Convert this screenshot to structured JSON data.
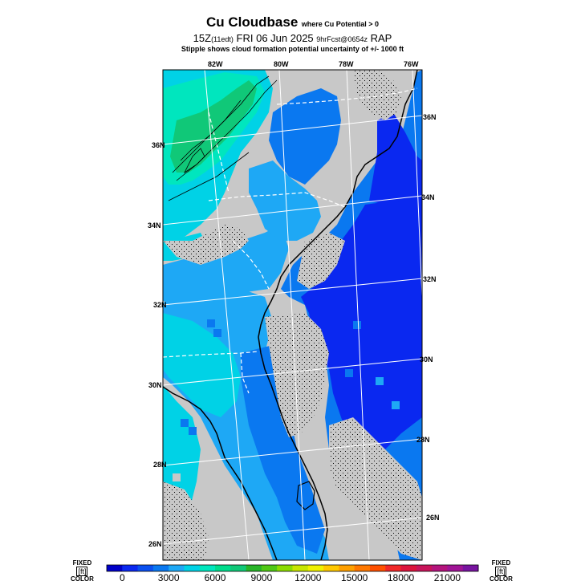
{
  "header": {
    "title": "Cu Cloudbase",
    "title_note": "where Cu Potential > 0",
    "line2_a": "15Z",
    "line2_b": "(11edt)",
    "line2_c": "FRI 06 Jun 2025",
    "line2_d": "9hrFcst@0654z",
    "line2_e": "RAP",
    "line3": "Stipple shows cloud formation potential uncertainty of +/-  1000 ft"
  },
  "map": {
    "lon_labels": [
      "82W",
      "80W",
      "78W",
      "76W"
    ],
    "lat_labels_left": [
      "36N",
      "34N",
      "32N",
      "30N",
      "28N",
      "26N"
    ],
    "lat_labels_right": [
      "36N",
      "34N",
      "32N",
      "30N",
      "28N",
      "26N"
    ],
    "colors": {
      "land_gray": "#c8c8c8",
      "blue_deep": "#0a28f0",
      "blue_mid": "#0a78f0",
      "blue_light": "#1ea8f5",
      "cyan": "#00d2e6",
      "teal": "#00e6be",
      "green": "#10c878"
    }
  },
  "colorbar": {
    "left_label_top": "FIXED",
    "left_label_unit": "[ft]",
    "left_label_bottom": "COLOR",
    "right_label_top": "FIXED",
    "right_label_unit": "[ft]",
    "right_label_bottom": "COLOR",
    "ticks": [
      "0",
      "3000",
      "6000",
      "9000",
      "12000",
      "15000",
      "18000",
      "21000"
    ],
    "colors": [
      "#0000c8",
      "#0a28f0",
      "#0a50f0",
      "#0a78f0",
      "#1ea8f5",
      "#00d2e6",
      "#00e6be",
      "#00dc8c",
      "#10c878",
      "#28b428",
      "#50c814",
      "#8cdc00",
      "#c8e600",
      "#f0f000",
      "#ffc800",
      "#ffa000",
      "#ff7800",
      "#ff5000",
      "#f02828",
      "#dc143c",
      "#c8145a",
      "#b4147d",
      "#a01496",
      "#7814a0"
    ]
  }
}
